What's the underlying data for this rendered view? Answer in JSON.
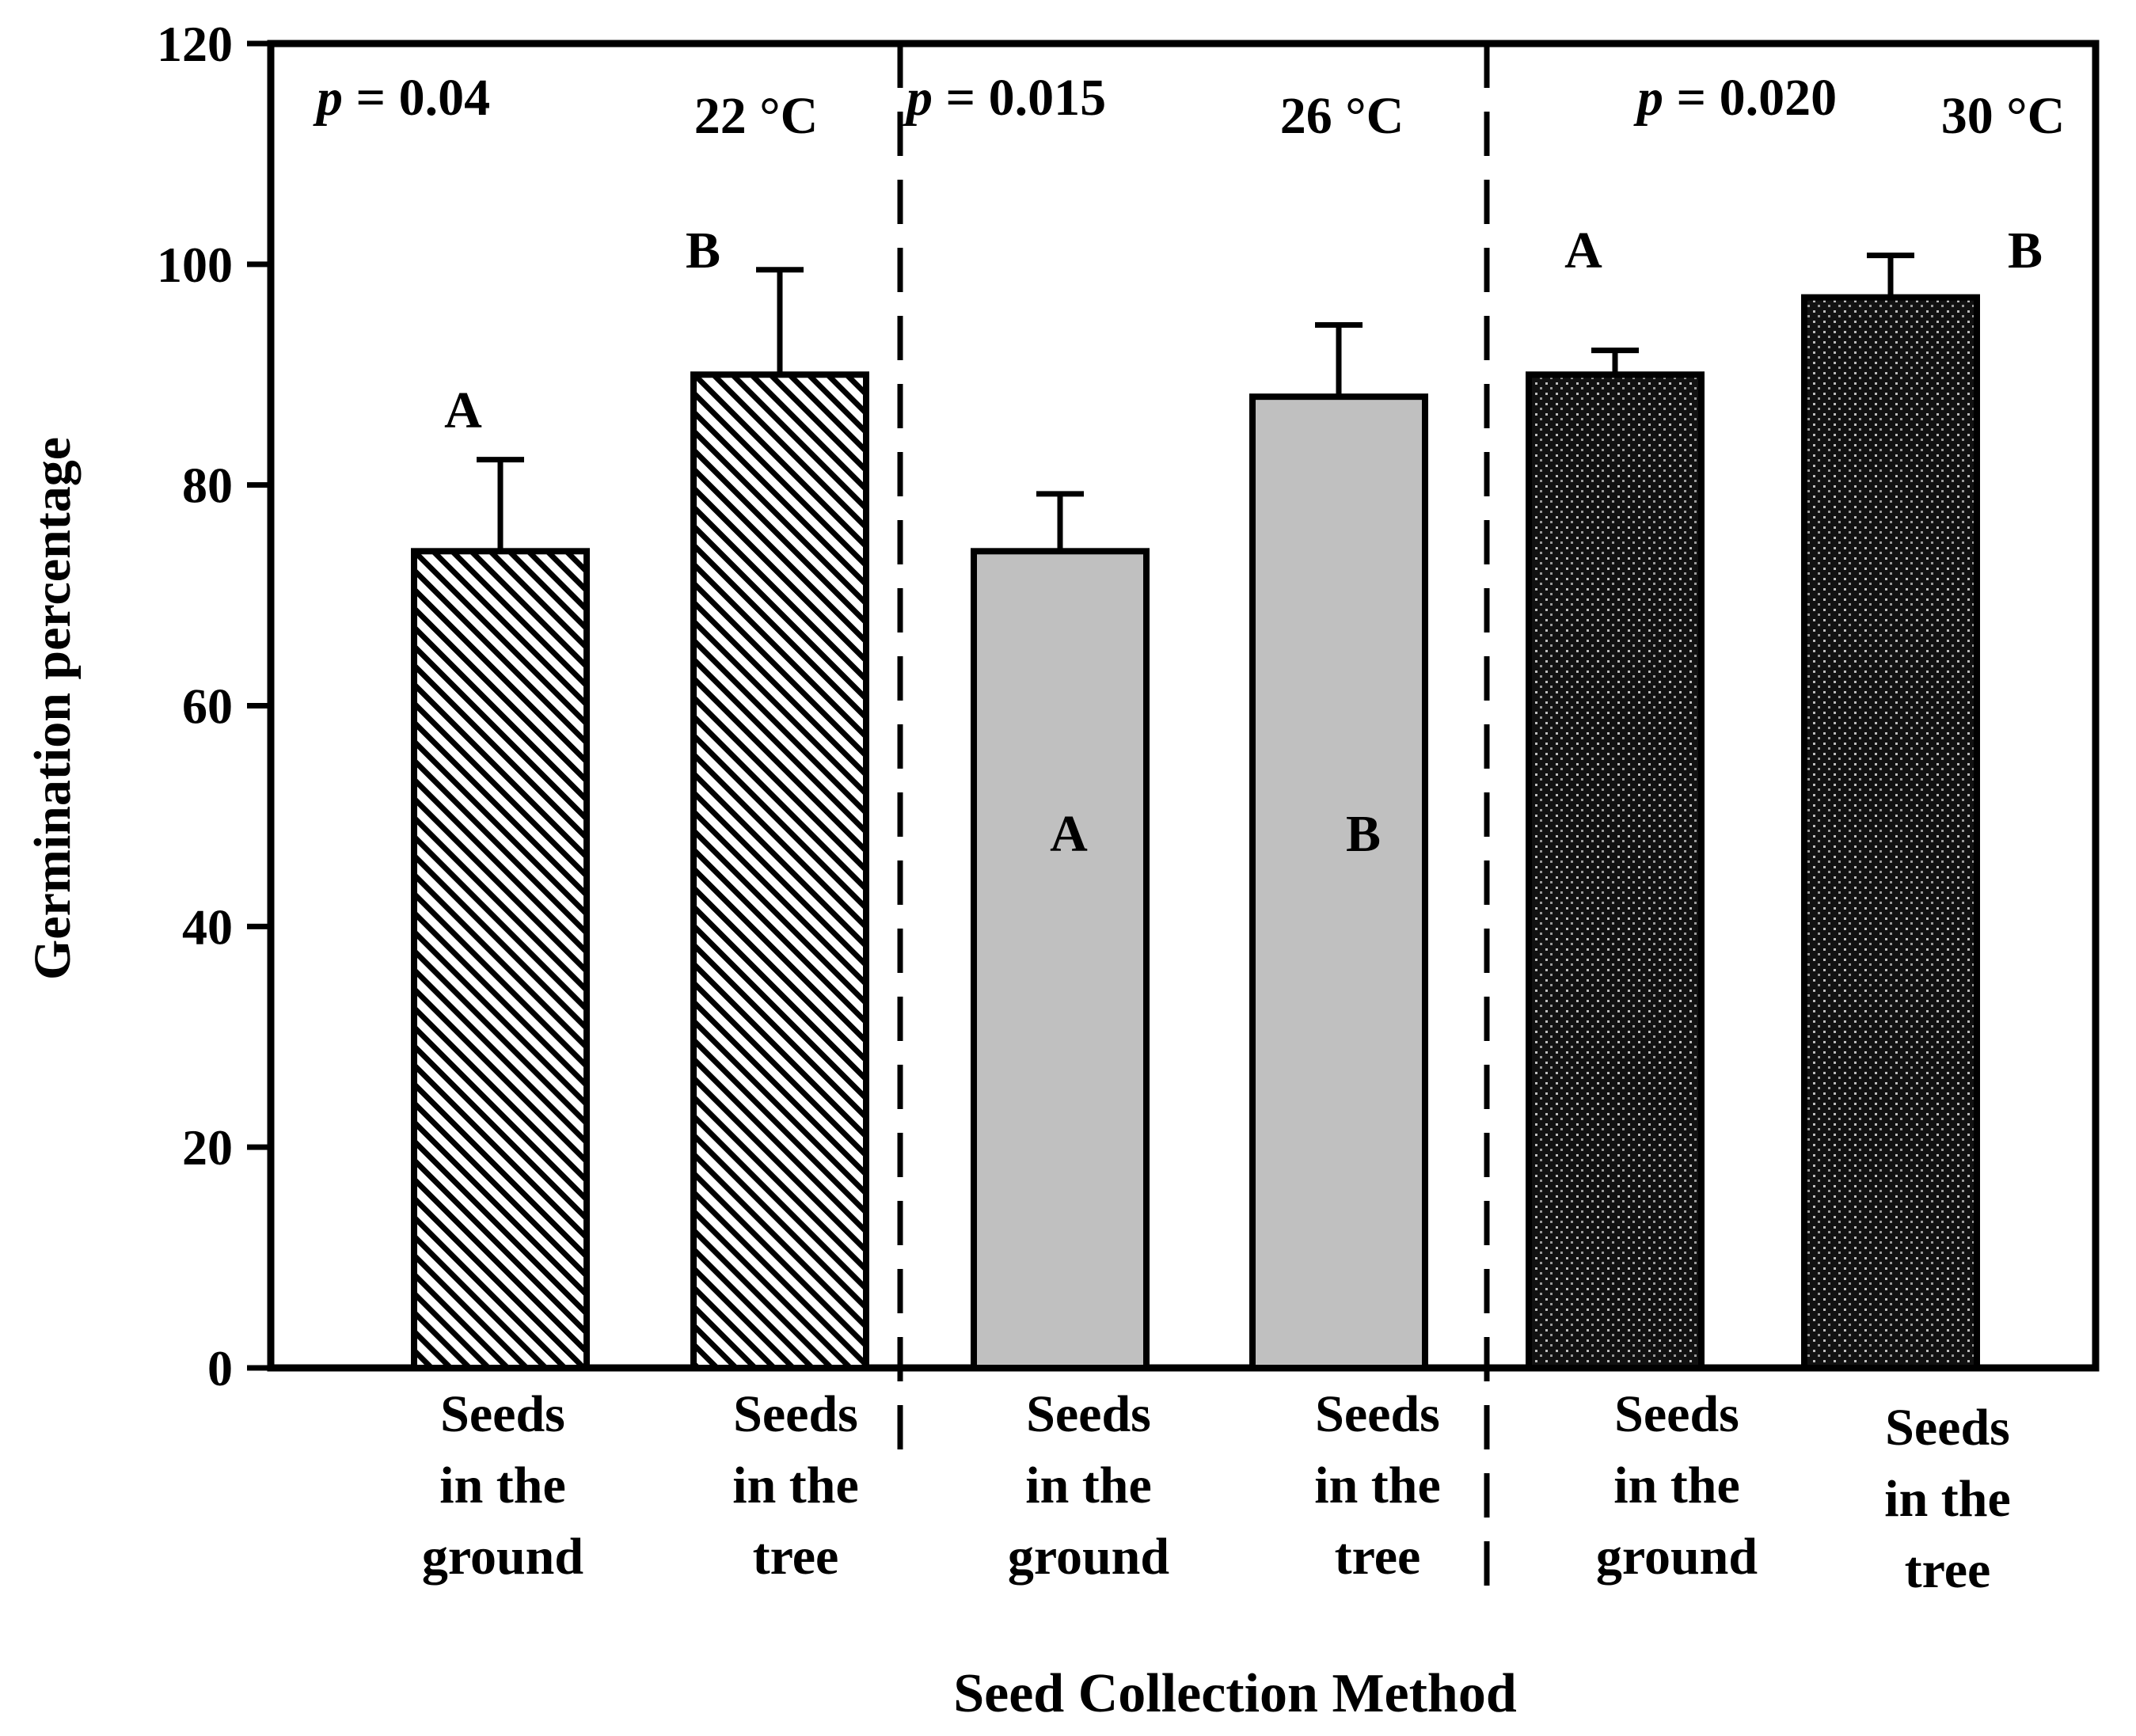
{
  "chart_data": {
    "type": "bar",
    "title": "",
    "xlabel": "Seed Collection Method",
    "ylabel": "Germination percentage",
    "ylim": [
      0,
      120
    ],
    "yticks": [
      "0",
      "20",
      "40",
      "60",
      "80",
      "100",
      "120"
    ],
    "grid": false,
    "legend": "none",
    "groups": [
      {
        "temperature": "22 °C",
        "p_symbol": "p",
        "p_value": "= 0.04",
        "fill": "hatch",
        "bars": [
          {
            "label": [
              "Seeds",
              "in the",
              "ground"
            ],
            "value": 74,
            "error": 8.3,
            "letter": "A"
          },
          {
            "label": [
              "Seeds",
              "in the",
              "tree"
            ],
            "value": 90,
            "error": 9.5,
            "letter": "B"
          }
        ]
      },
      {
        "temperature": "26 °C",
        "p_symbol": "p",
        "p_value": "= 0.015",
        "fill": "gray",
        "bars": [
          {
            "label": [
              "Seeds",
              "in the",
              "ground"
            ],
            "value": 74,
            "error": 5.2,
            "letter": "A"
          },
          {
            "label": [
              "Seeds",
              "in the",
              "tree"
            ],
            "value": 88,
            "error": 6.5,
            "letter": "B"
          }
        ]
      },
      {
        "temperature": "30 °C",
        "p_symbol": "p",
        "p_value": "= 0.020",
        "fill": "dots",
        "bars": [
          {
            "label": [
              "Seeds",
              "in the",
              "ground"
            ],
            "value": 90,
            "error": 2.2,
            "letter": "A"
          },
          {
            "label": [
              "Seeds",
              "in the",
              "tree"
            ],
            "value": 97,
            "error": 3.8,
            "letter": "B"
          }
        ]
      }
    ]
  },
  "colors": {
    "axis": "#000000",
    "gray_fill": "#c0c0c0",
    "hatch_bg": "#ffffff",
    "dots_bg": "#111111",
    "dots_fg": "#bdbdbd"
  }
}
